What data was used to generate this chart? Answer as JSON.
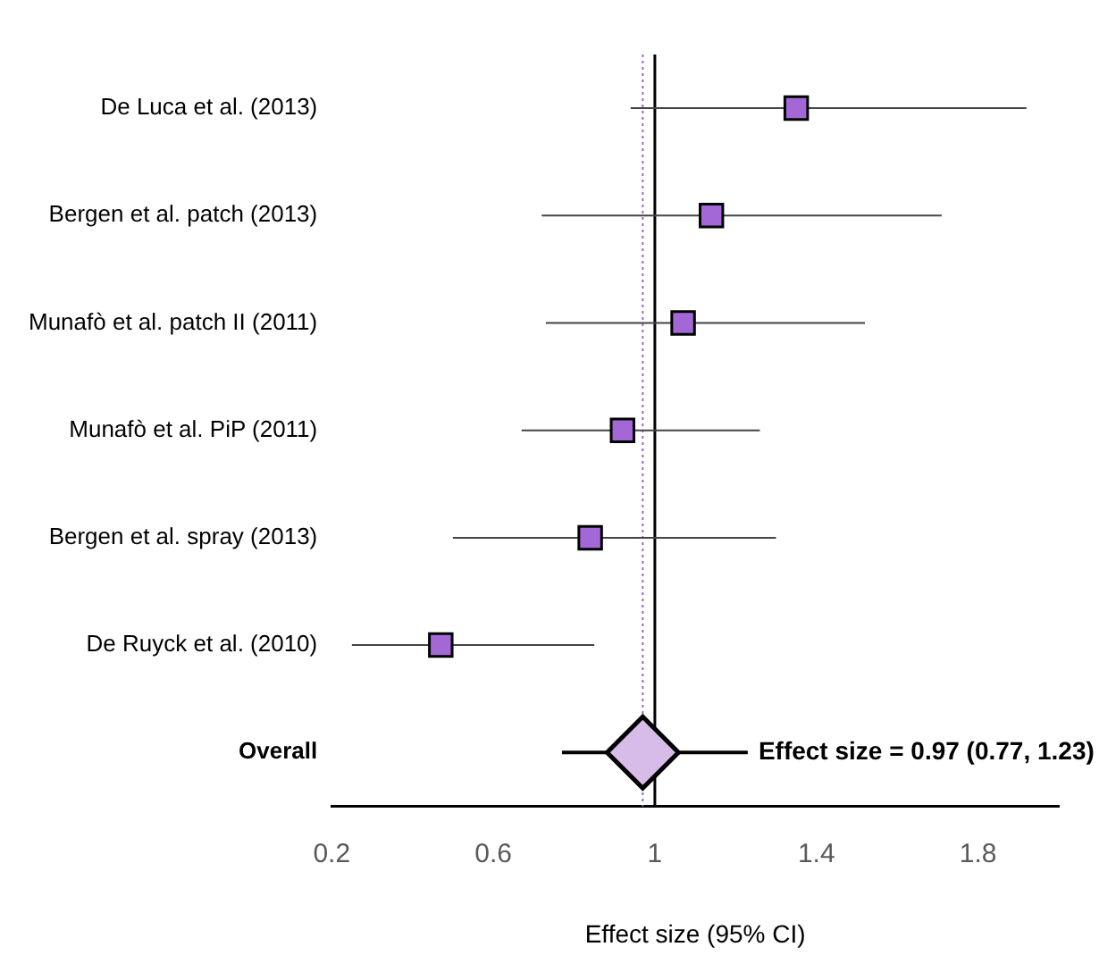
{
  "chart_data": {
    "type": "scatter",
    "orientation": "horizontal",
    "xlabel": "Effect size (95% CI)",
    "categories": [
      "De Luca et al. (2013)",
      "Bergen et al. patch (2013)",
      "Munafò et al. patch II (2011)",
      "Munafò et al. PiP (2011)",
      "Bergen et al. spray (2013)",
      "De Ruyck et al. (2010)",
      "Overall"
    ],
    "series": [
      {
        "color": "#a468d6",
        "marker": "square",
        "values": [
          1.35,
          1.14,
          1.07,
          0.92,
          0.84,
          0.47,
          null
        ],
        "errors": [
          [
            0.94,
            1.92
          ],
          [
            0.72,
            1.71
          ],
          [
            0.73,
            1.52
          ],
          [
            0.67,
            1.26
          ],
          [
            0.5,
            1.3
          ],
          [
            0.25,
            0.85
          ],
          null
        ]
      },
      {
        "color": "#d7bbe9",
        "marker": "diamond",
        "values": [
          null,
          null,
          null,
          null,
          null,
          null,
          0.97
        ],
        "errors": [
          null,
          null,
          null,
          null,
          null,
          null,
          [
            0.77,
            1.23
          ]
        ]
      }
    ],
    "xlim": [
      0.2,
      2.0
    ],
    "xticks": [
      0.2,
      0.6,
      1,
      1.4,
      1.8
    ],
    "ref_lines": [
      {
        "axis": "x",
        "value": 0.97,
        "color": "#9966cc",
        "line_style": "dotted"
      },
      {
        "axis": "x",
        "value": 1,
        "color": "#000000",
        "line_style": "solid"
      }
    ],
    "annotations": [
      "Effect size = 0.97 (0.77, 1.23)"
    ],
    "grid": false,
    "legend": false
  }
}
